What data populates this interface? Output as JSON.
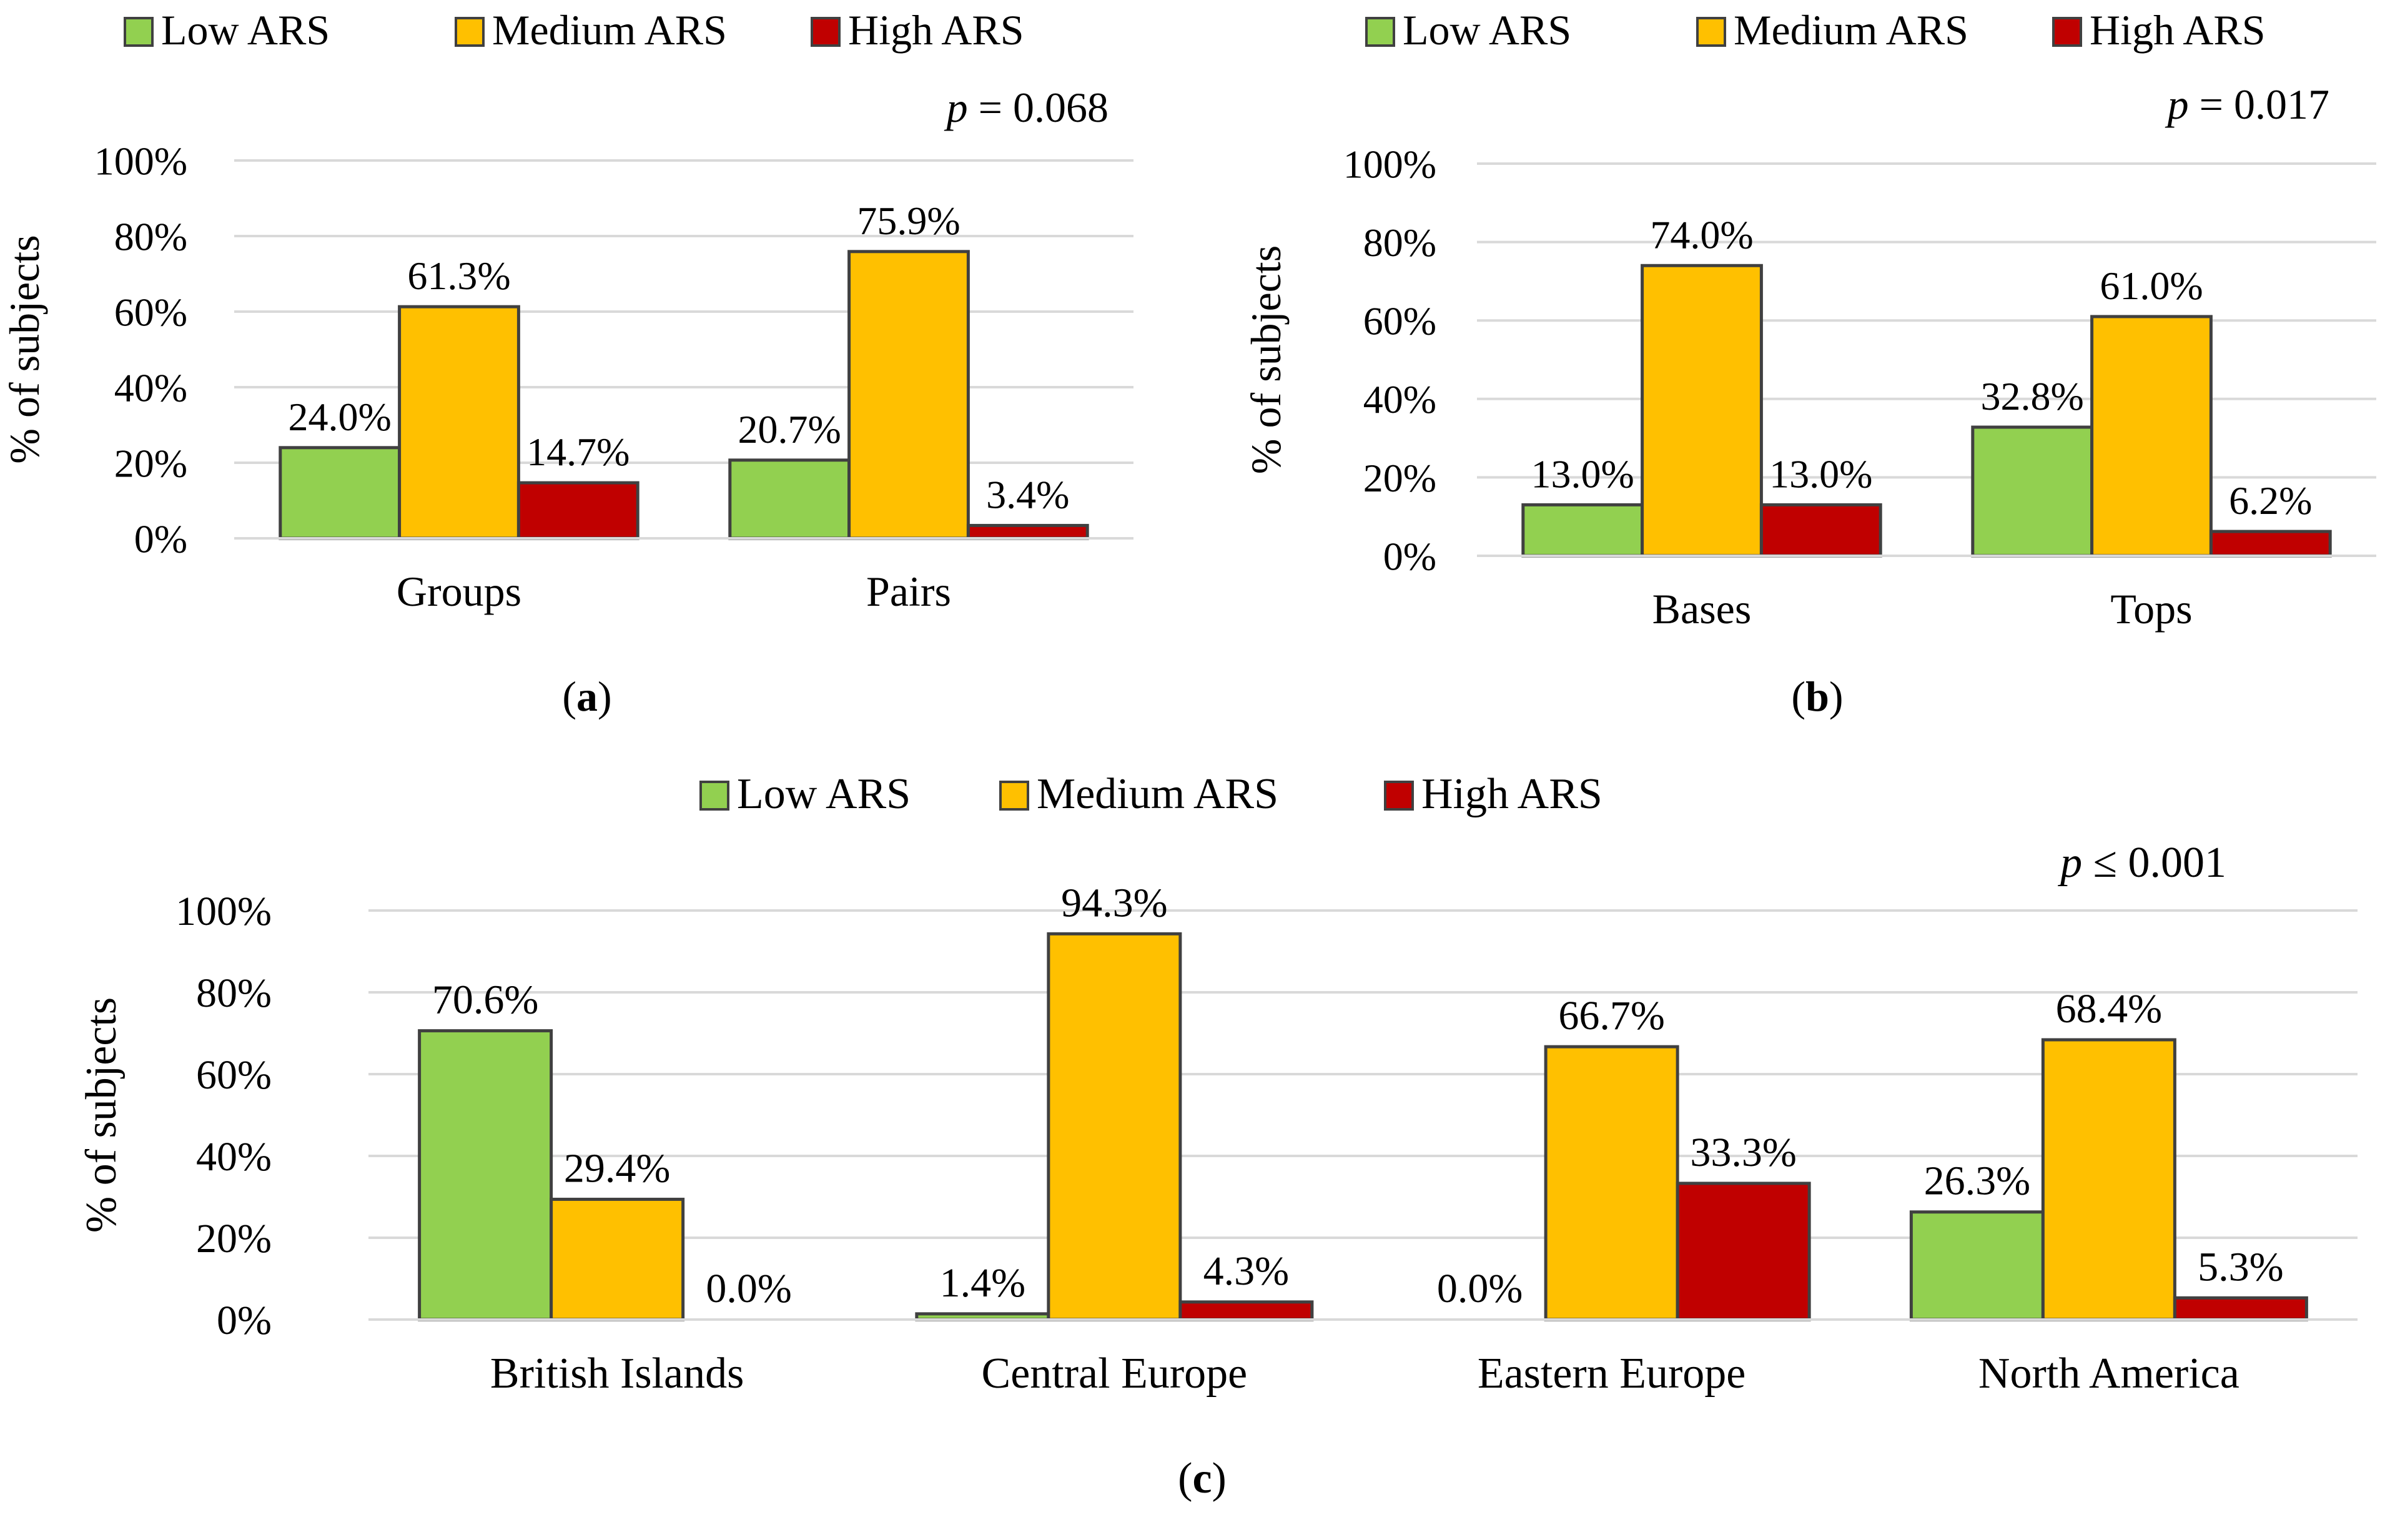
{
  "colors": {
    "low": "#92D050",
    "medium": "#FFC000",
    "high": "#C00000",
    "bar_stroke": "#404040",
    "grid": "#D9D9D9",
    "text": "#000000"
  },
  "chart_data": [
    {
      "panel": "a",
      "type": "bar",
      "categories": [
        "Groups",
        "Pairs"
      ],
      "series": [
        {
          "name": "Low ARS",
          "values": [
            24.0,
            20.7
          ],
          "labels": [
            "24.0%",
            "20.7%"
          ]
        },
        {
          "name": "Medium ARS",
          "values": [
            61.3,
            75.9
          ],
          "labels": [
            "61.3%",
            "75.9%"
          ]
        },
        {
          "name": "High ARS",
          "values": [
            14.7,
            3.4
          ],
          "labels": [
            "14.7%",
            "3.4%"
          ]
        }
      ],
      "ylabel": "% of subjects",
      "ylim": [
        0,
        100
      ],
      "yticks": [
        "0%",
        "20%",
        "40%",
        "60%",
        "80%",
        "100%"
      ],
      "p_symbol": "p",
      "p_value": " = 0.068",
      "caption_letter": "a",
      "legend": "top"
    },
    {
      "panel": "b",
      "type": "bar",
      "categories": [
        "Bases",
        "Tops"
      ],
      "series": [
        {
          "name": "Low ARS",
          "values": [
            13.0,
            32.8
          ],
          "labels": [
            "13.0%",
            "32.8%"
          ]
        },
        {
          "name": "Medium ARS",
          "values": [
            74.0,
            61.0
          ],
          "labels": [
            "74.0%",
            "61.0%"
          ]
        },
        {
          "name": "High ARS",
          "values": [
            13.0,
            6.2
          ],
          "labels": [
            "13.0%",
            "6.2%"
          ]
        }
      ],
      "ylabel": "% of subjects",
      "ylim": [
        0,
        100
      ],
      "yticks": [
        "0%",
        "20%",
        "40%",
        "60%",
        "80%",
        "100%"
      ],
      "p_symbol": "p",
      "p_value": " = 0.017",
      "caption_letter": "b",
      "legend": "top"
    },
    {
      "panel": "c",
      "type": "bar",
      "categories": [
        "British Islands",
        "Central Europe",
        "Eastern Europe",
        "North America"
      ],
      "series": [
        {
          "name": "Low ARS",
          "values": [
            70.6,
            1.4,
            0.0,
            26.3
          ],
          "labels": [
            "70.6%",
            "1.4%",
            "0.0%",
            "26.3%"
          ]
        },
        {
          "name": "Medium ARS",
          "values": [
            29.4,
            94.3,
            66.7,
            68.4
          ],
          "labels": [
            "29.4%",
            "94.3%",
            "66.7%",
            "68.4%"
          ]
        },
        {
          "name": "High ARS",
          "values": [
            0.0,
            4.3,
            33.3,
            5.3
          ],
          "labels": [
            "0.0%",
            "4.3%",
            "33.3%",
            "5.3%"
          ]
        }
      ],
      "ylabel": "% of subjects",
      "ylim": [
        0,
        100
      ],
      "yticks": [
        "0%",
        "20%",
        "40%",
        "60%",
        "80%",
        "100%"
      ],
      "p_symbol": "p",
      "p_value": " ≤ 0.001",
      "caption_letter": "c",
      "legend": "top"
    }
  ]
}
